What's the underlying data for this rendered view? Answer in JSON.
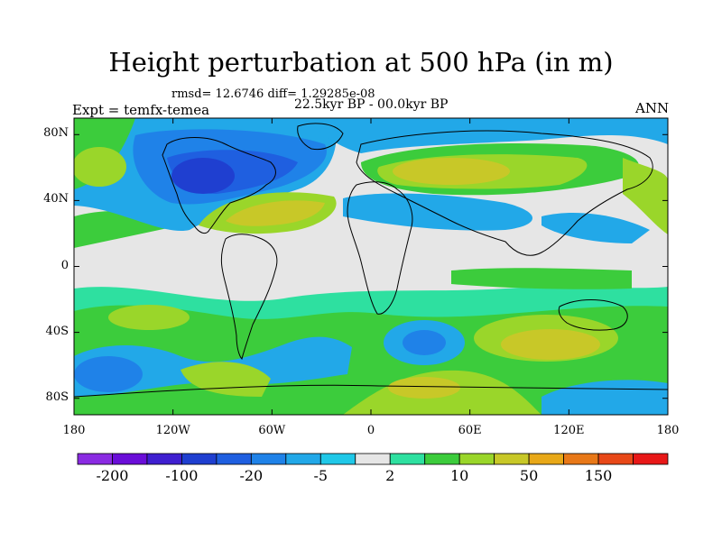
{
  "title": "Height perturbation at 500 hPa (in m)",
  "stats": "rmsd= 12.6746 diff= 1.29285e-08",
  "period": "22.5kyr BP - 00.0kyr BP",
  "experiment": "Expt = temfx-temea",
  "season": "ANN",
  "lat_ticks": [
    {
      "label": "80N",
      "lat": 80
    },
    {
      "label": "40N",
      "lat": 40
    },
    {
      "label": "0",
      "lat": 0
    },
    {
      "label": "40S",
      "lat": -40
    },
    {
      "label": "80S",
      "lat": -80
    }
  ],
  "lon_ticks": [
    {
      "label": "180",
      "lon": -180
    },
    {
      "label": "120W",
      "lon": -120
    },
    {
      "label": "60W",
      "lon": -60
    },
    {
      "label": "0",
      "lon": 0
    },
    {
      "label": "60E",
      "lon": 60
    },
    {
      "label": "120E",
      "lon": 120
    },
    {
      "label": "180",
      "lon": 180
    }
  ],
  "colorbar": {
    "colors": [
      "#8a2be2",
      "#6a0ed8",
      "#3f1fd0",
      "#1f3fd0",
      "#1f5fe0",
      "#1f82e8",
      "#22a8e8",
      "#20c8e8",
      "#e6e6e6",
      "#2ee0a0",
      "#3ccc3c",
      "#9ad62a",
      "#c8c828",
      "#e8a818",
      "#e87818",
      "#e84818",
      "#e81818"
    ],
    "labels": [
      {
        "text": "-200",
        "after_box": 1
      },
      {
        "text": "-100",
        "after_box": 3
      },
      {
        "text": "-20",
        "after_box": 5
      },
      {
        "text": "-5",
        "after_box": 7
      },
      {
        "text": "2",
        "after_box": 9
      },
      {
        "text": "10",
        "after_box": 11
      },
      {
        "text": "50",
        "after_box": 13
      },
      {
        "text": "150",
        "after_box": 15
      }
    ]
  },
  "field_colors": {
    "neutral": "#e6e6e6",
    "light_cyan": "#2ee0a0",
    "green": "#3ccc3c",
    "yellow_green": "#9ad62a",
    "olive": "#c8c828",
    "orange": "#e8a818",
    "sky": "#22a8e8",
    "blue": "#1f82e8",
    "deep_blue": "#1f5fe0",
    "navy": "#1f3fd0"
  }
}
